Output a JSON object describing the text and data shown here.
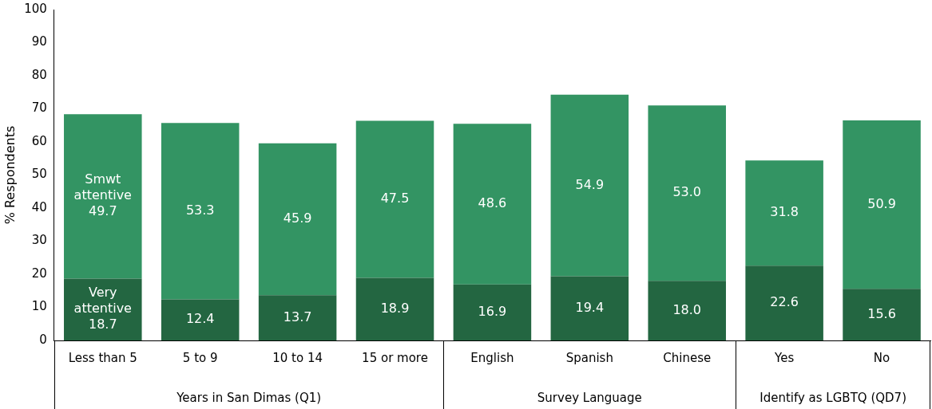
{
  "chart_data": {
    "type": "bar",
    "stacked": true,
    "ylabel": "% Respondents",
    "categories": [
      "Less than 5",
      "5 to 9",
      "10 to 14",
      "15 or more",
      "English",
      "Spanish",
      "Chinese",
      "Yes",
      "No"
    ],
    "series": [
      {
        "name": "Very attentive",
        "color": "#236641",
        "values": [
          18.7,
          12.4,
          13.7,
          18.9,
          16.9,
          19.4,
          18.0,
          22.6,
          15.6
        ],
        "value_labels": [
          "18.7",
          "12.4",
          "13.7",
          "18.9",
          "16.9",
          "19.4",
          "18.0",
          "22.6",
          "15.6"
        ]
      },
      {
        "name": "Smwt attentive",
        "color": "#339463",
        "values": [
          49.7,
          53.3,
          45.9,
          47.5,
          48.6,
          54.9,
          53.0,
          31.8,
          50.9
        ],
        "value_labels": [
          "49.7",
          "53.3",
          "45.9",
          "47.5",
          "48.6",
          "54.9",
          "53.0",
          "31.8",
          "50.9"
        ]
      }
    ],
    "ylim": [
      0,
      100
    ],
    "yticks": [
      0,
      10,
      20,
      30,
      40,
      50,
      60,
      70,
      80,
      90,
      100
    ],
    "grid": false,
    "legend": false,
    "annotations": [
      "Years in San Dimas (Q1)",
      "Survey Language",
      "Identify as LGBTQ (QD7)"
    ]
  }
}
